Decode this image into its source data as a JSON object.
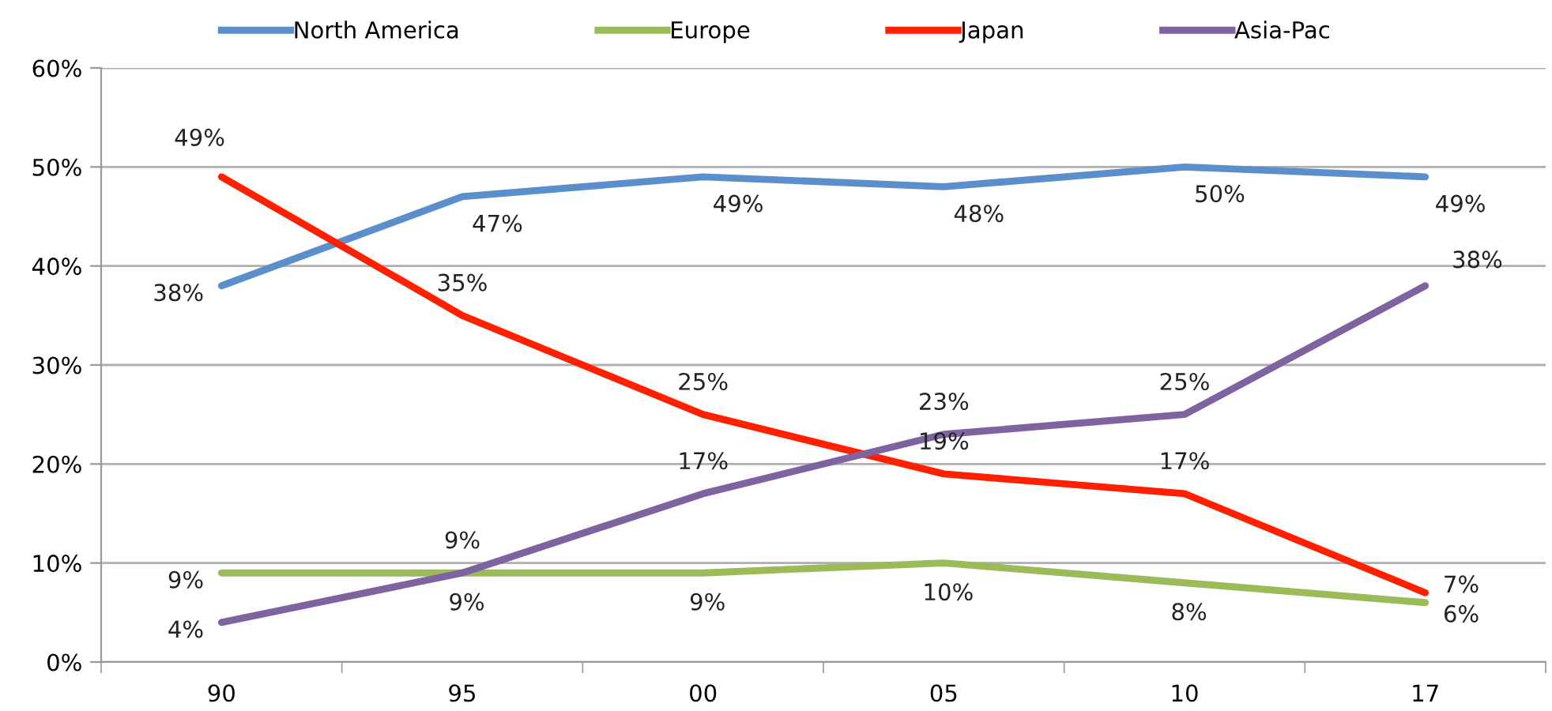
{
  "chart_data": {
    "type": "line",
    "categories": [
      "90",
      "95",
      "00",
      "05",
      "10",
      "17"
    ],
    "ylim": [
      0,
      60
    ],
    "yticks": [
      {
        "value": 0,
        "label": "0%"
      },
      {
        "value": 10,
        "label": "10%"
      },
      {
        "value": 20,
        "label": "20%"
      },
      {
        "value": 30,
        "label": "30%"
      },
      {
        "value": 40,
        "label": "40%"
      },
      {
        "value": 50,
        "label": "50%"
      },
      {
        "value": 60,
        "label": "60%"
      }
    ],
    "grid": "y",
    "legend": "top",
    "marker": "none",
    "line_style": "solid",
    "series": [
      {
        "name": "North America",
        "color": "#5b8fcc",
        "values": [
          38,
          47,
          49,
          48,
          50,
          49
        ],
        "value_labels": [
          "38%",
          "47%",
          "49%",
          "48%",
          "50%",
          "49%"
        ]
      },
      {
        "name": "Europe",
        "color": "#9bbb59",
        "values": [
          9,
          9,
          9,
          10,
          8,
          6
        ],
        "value_labels": [
          "9%",
          "9%",
          "9%",
          "10%",
          "8%",
          "6%"
        ]
      },
      {
        "name": "Japan",
        "color": "#ff2000",
        "values": [
          49,
          35,
          25,
          19,
          17,
          7
        ],
        "value_labels": [
          "49%",
          "35%",
          "25%",
          "19%",
          "17%",
          "7%"
        ]
      },
      {
        "name": "Asia-Pac",
        "color": "#7f62a0",
        "values": [
          4,
          9,
          17,
          23,
          25,
          38
        ],
        "value_labels": [
          "4%",
          "9%",
          "17%",
          "23%",
          "25%",
          "38%"
        ]
      }
    ]
  }
}
